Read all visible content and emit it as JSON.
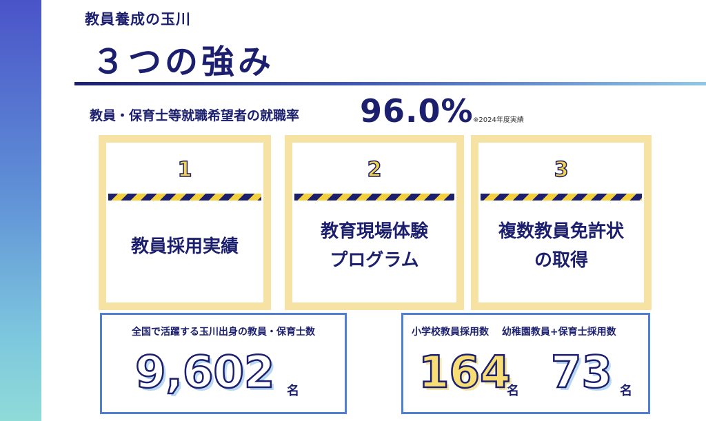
{
  "header": {
    "subtitle": "教員養成の玉川",
    "title": "３つの強み"
  },
  "employment_rate": {
    "label": "教員・保育士等就職希望者の就職率",
    "value": "96.0%",
    "note": "※2024年度実績"
  },
  "strengths": [
    {
      "number": "1",
      "lines": [
        "教員採用実績"
      ]
    },
    {
      "number": "2",
      "lines": [
        "教育現場体験",
        "プログラム"
      ]
    },
    {
      "number": "3",
      "lines": [
        "複数教員免許状",
        "の取得"
      ]
    }
  ],
  "stats": {
    "alumni": {
      "caption": "全国で活躍する玉川出身の教員・保育士数",
      "value": "9,602",
      "unit": "名"
    },
    "elementary": {
      "caption": "小学校教員採用数",
      "value": "164",
      "unit": "名"
    },
    "kindergarten": {
      "caption": "幼稚園教員+保育士採用数",
      "value": "73",
      "unit": "名"
    }
  },
  "colors": {
    "navy": "#1b1f6e",
    "yellow": "#f3d34a",
    "card_border": "#f6e2a3",
    "box_border": "#4f7fd1"
  }
}
